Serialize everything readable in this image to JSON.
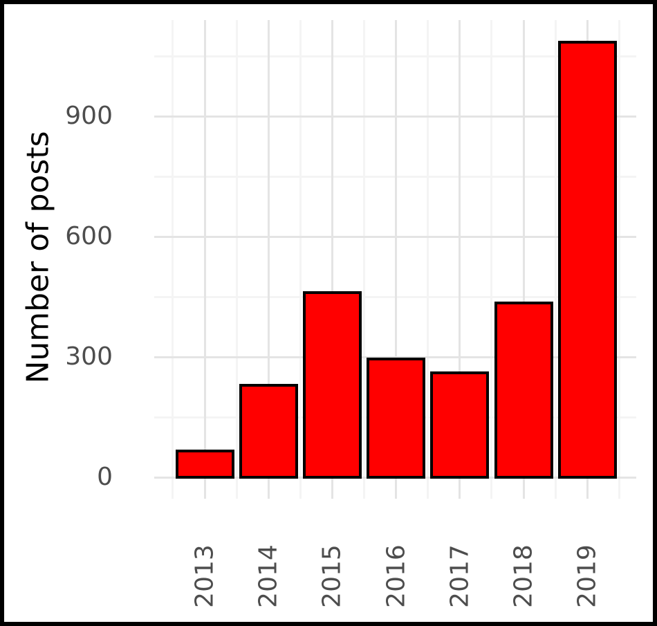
{
  "window": {
    "background": "#ffffff",
    "frame_color": "#000000"
  },
  "chart_data": {
    "type": "bar",
    "title": "",
    "xlabel": "",
    "ylabel": "Number of posts",
    "categories": [
      "2013",
      "2014",
      "2015",
      "2016",
      "2017",
      "2018",
      "2019"
    ],
    "values": [
      65,
      230,
      460,
      295,
      260,
      435,
      1085
    ],
    "y_ticks": [
      0,
      300,
      600,
      900
    ],
    "y_minor_ticks": [
      150,
      450,
      750,
      1050
    ],
    "ylim": [
      -53,
      1140
    ],
    "grid": "on",
    "legend_position": "none",
    "x_tick_rotation_deg": 90,
    "colors": {
      "bar_fill": "#ff0000",
      "bar_stroke": "#000000",
      "grid_major": "#e4e4e4",
      "grid_minor": "#f4f4f4",
      "tick_label": "#4d4d4d",
      "axis_title": "#000000",
      "panel_background": "#ffffff"
    }
  }
}
